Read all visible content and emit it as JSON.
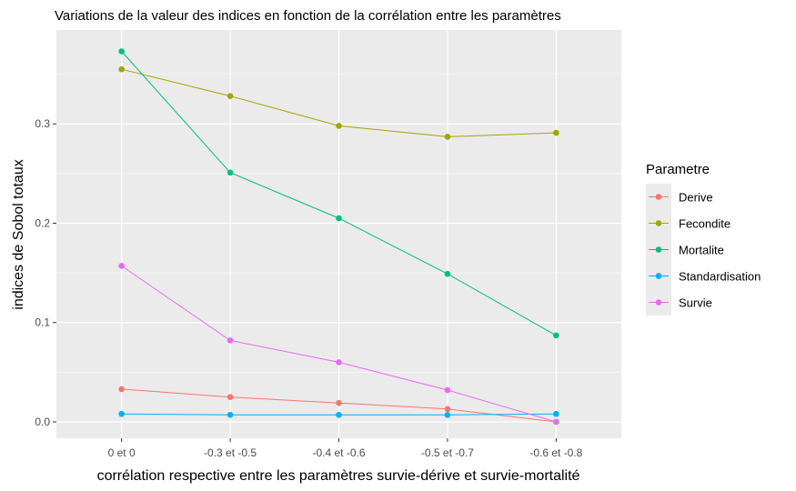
{
  "chart_data": {
    "type": "line",
    "title": "Variations de la valeur des indices en fonction de la corrélation entre les paramètres",
    "xlabel": "corrélation respective entre les paramètres survie-dérive et survie-mortalité",
    "ylabel": "indices de Sobol totaux",
    "categories": [
      "0 et 0",
      "-0.3 et -0.5",
      "-0.4 et -0.6",
      "-0.5 et -0.7",
      "-0.6 et -0.8"
    ],
    "ylim": [
      -0.0165,
      0.3945
    ],
    "yticks": [
      0.0,
      0.1,
      0.2,
      0.3
    ],
    "ytick_labels": [
      "0.0",
      "0.1",
      "0.2",
      "0.3"
    ],
    "grid": true,
    "legend_title": "Parametre",
    "legend_position": "right",
    "series": [
      {
        "name": "Derive",
        "color": "#F8766D",
        "values": [
          0.033,
          0.025,
          0.019,
          0.013,
          0.0
        ]
      },
      {
        "name": "Fecondite",
        "color": "#A3A500",
        "values": [
          0.355,
          0.328,
          0.298,
          0.287,
          0.291
        ]
      },
      {
        "name": "Mortalite",
        "color": "#00BF7D",
        "values": [
          0.373,
          0.251,
          0.205,
          0.149,
          0.087
        ]
      },
      {
        "name": "Standardisation",
        "color": "#00B0F6",
        "values": [
          0.008,
          0.007,
          0.007,
          0.007,
          0.008
        ]
      },
      {
        "name": "Survie",
        "color": "#E76BF3",
        "values": [
          0.157,
          0.082,
          0.06,
          0.032,
          0.0
        ]
      }
    ]
  }
}
